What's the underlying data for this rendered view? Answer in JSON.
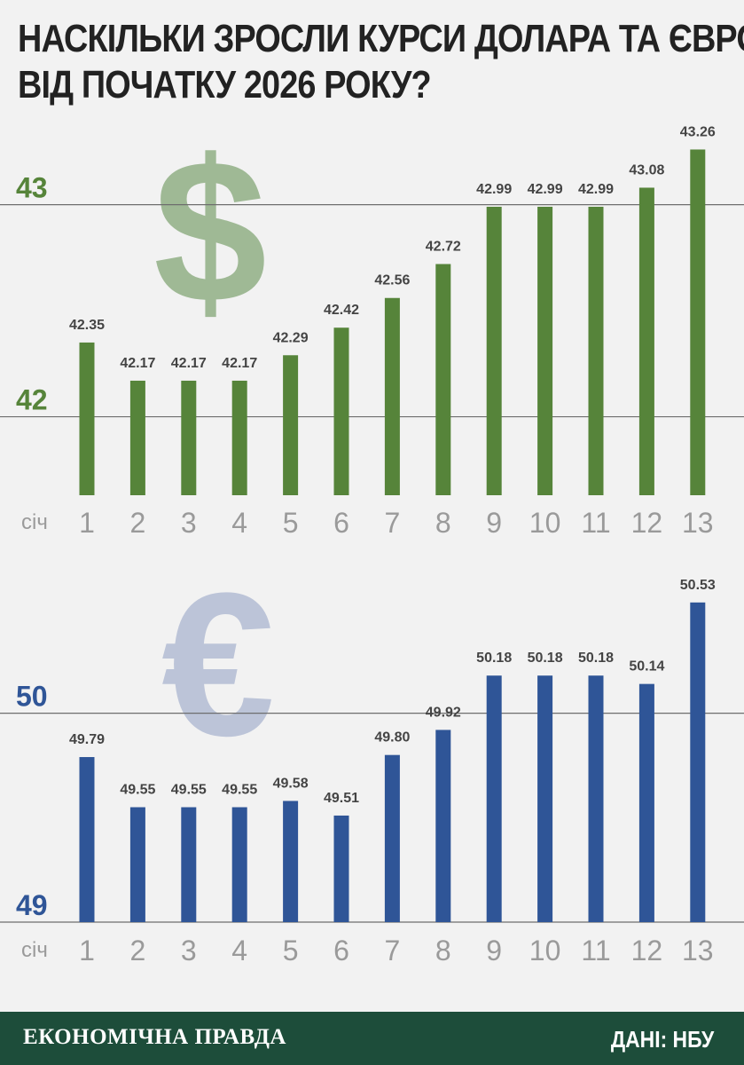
{
  "title": {
    "line1": "НАСКІЛЬКИ ЗРОСЛИ КУРСИ ДОЛАРА ТА ЄВРО",
    "line2": "ВІД ПОЧАТКУ 2026 РОКУ?"
  },
  "footer": {
    "brand": "ЕКОНОМІЧНА ПРАВДА",
    "source": "ДАНІ: НБУ",
    "background_color": "#1d4d3a"
  },
  "chart_data": [
    {
      "type": "bar",
      "currency_symbol": "$",
      "month_label": "січ",
      "categories": [
        "1",
        "2",
        "3",
        "4",
        "5",
        "6",
        "7",
        "8",
        "9",
        "10",
        "11",
        "12",
        "13"
      ],
      "values": [
        42.35,
        42.17,
        42.17,
        42.17,
        42.29,
        42.42,
        42.56,
        42.72,
        42.99,
        42.99,
        42.99,
        43.08,
        43.26
      ],
      "value_labels": [
        "42.35",
        "42.17",
        "42.17",
        "42.17",
        "42.29",
        "42.42",
        "42.56",
        "42.72",
        "42.99",
        "42.99",
        "42.99",
        "43.08",
        "43.26"
      ],
      "yticks": [
        42,
        43
      ],
      "ylim": [
        41.63,
        43.4
      ],
      "grid": true,
      "bar_color": "#56843a",
      "tick_label_color": "#56843a",
      "symbol_color": "#9fb995"
    },
    {
      "type": "bar",
      "currency_symbol": "€",
      "month_label": "січ",
      "categories": [
        "1",
        "2",
        "3",
        "4",
        "5",
        "6",
        "7",
        "8",
        "9",
        "10",
        "11",
        "12",
        "13"
      ],
      "values": [
        49.79,
        49.55,
        49.55,
        49.55,
        49.58,
        49.51,
        49.8,
        49.92,
        50.18,
        50.18,
        50.18,
        50.14,
        50.53
      ],
      "value_labels": [
        "49.79",
        "49.55",
        "49.55",
        "49.55",
        "49.58",
        "49.51",
        "49.80",
        "49.92",
        "50.18",
        "50.18",
        "50.18",
        "50.14",
        "50.53"
      ],
      "yticks": [
        49,
        50
      ],
      "ylim": [
        49,
        50.61
      ],
      "grid": true,
      "bar_color": "#2f5597",
      "tick_label_color": "#2f5597",
      "symbol_color": "#bcc4d8"
    }
  ]
}
